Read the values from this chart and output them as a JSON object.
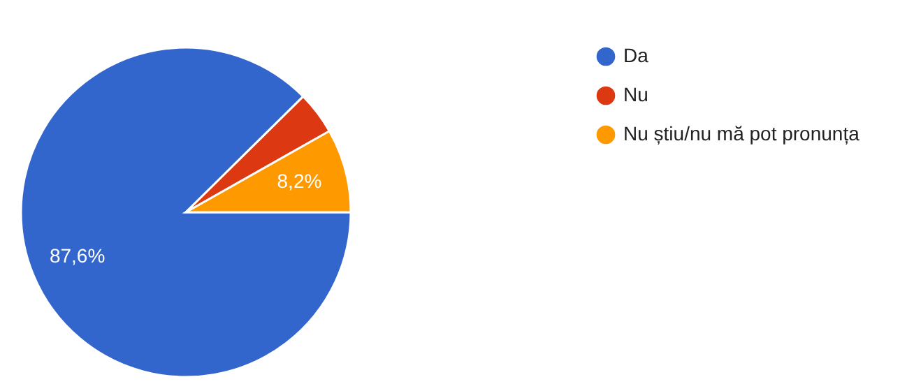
{
  "chart_data": {
    "type": "pie",
    "categories": [
      "Da",
      "Nu",
      "Nu știu/nu mă pot pronunța"
    ],
    "values": [
      87.6,
      4.2,
      8.2
    ],
    "colors": [
      "#3366cc",
      "#dc3912",
      "#ff9900"
    ],
    "value_labels": [
      "87,6%",
      null,
      "8,2%"
    ],
    "legend": "top right"
  }
}
